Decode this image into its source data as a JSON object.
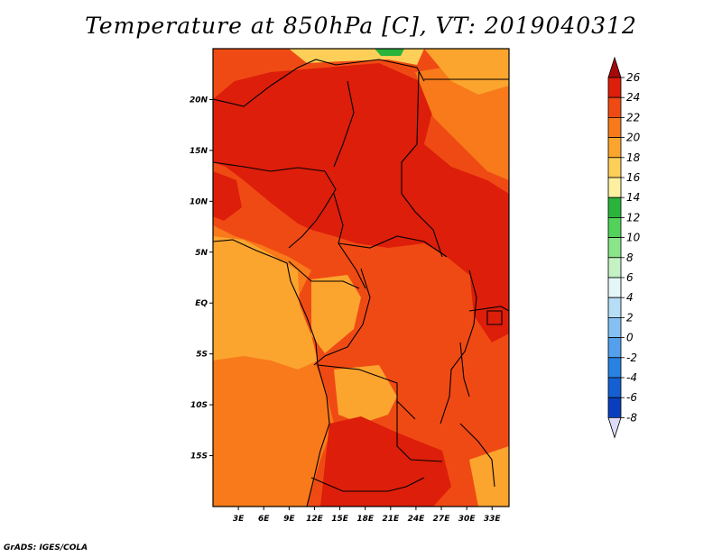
{
  "title": "Temperature at 850hPa [C], VT: 2019040312",
  "credit": "GrADS: IGES/COLA",
  "map": {
    "lon_range": [
      0,
      35
    ],
    "lat_range": [
      -20,
      25
    ],
    "x_ticks": [
      "3E",
      "6E",
      "9E",
      "12E",
      "15E",
      "18E",
      "21E",
      "24E",
      "27E",
      "30E",
      "33E"
    ],
    "x_tick_values": [
      3,
      6,
      9,
      12,
      15,
      18,
      21,
      24,
      27,
      30,
      33
    ],
    "y_ticks": [
      "20N",
      "15N",
      "10N",
      "5N",
      "EQ",
      "5S",
      "10S",
      "15S"
    ],
    "y_tick_values": [
      20,
      15,
      10,
      5,
      0,
      -5,
      -10,
      -15
    ]
  },
  "colorbar": {
    "levels": [
      "26",
      "24",
      "22",
      "20",
      "18",
      "16",
      "14",
      "12",
      "10",
      "8",
      "6",
      "4",
      "2",
      "0",
      "-2",
      "-4",
      "-6",
      "-8"
    ],
    "colors": [
      "#a50a0a",
      "#dc1e0a",
      "#f04a14",
      "#f87a1a",
      "#fba52e",
      "#fdcf58",
      "#fdf0a0",
      "#2ab43c",
      "#52d25a",
      "#8ae48a",
      "#c4f2c4",
      "#e4f6f8",
      "#b6def6",
      "#84c0f2",
      "#54a0ec",
      "#2a82e2",
      "#1460d2",
      "#0a3ebe",
      "#081e8c",
      "#dcdcf8"
    ]
  }
}
